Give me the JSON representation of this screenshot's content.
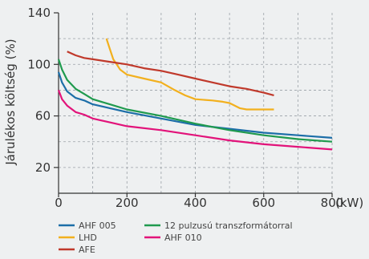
{
  "chart_data": {
    "type": "line",
    "title": "",
    "xlabel": "(kW)",
    "ylabel": "Járulékos költség (%)",
    "xlim": [
      0,
      800
    ],
    "ylim": [
      0,
      140
    ],
    "xticks": [
      0,
      200,
      400,
      600,
      800
    ],
    "yticks": [
      20,
      60,
      100,
      140
    ],
    "grid": true,
    "legend_position": "bottom-left",
    "series": [
      {
        "name": "AHF 005",
        "color": "#1c6ea8",
        "x": [
          0,
          10,
          25,
          50,
          75,
          100,
          150,
          200,
          300,
          400,
          500,
          600,
          700,
          800
        ],
        "y": [
          94,
          86,
          79,
          74,
          72,
          69,
          66,
          63,
          58,
          53,
          50,
          47,
          45,
          43
        ]
      },
      {
        "name": "12 pulzusú transzformátorral",
        "color": "#1f9a4e",
        "x": [
          0,
          10,
          25,
          50,
          75,
          100,
          150,
          200,
          300,
          400,
          500,
          600,
          700,
          800
        ],
        "y": [
          104,
          96,
          88,
          81,
          77,
          73,
          69,
          65,
          60,
          54,
          49,
          45,
          42,
          40
        ]
      },
      {
        "name": "LHD",
        "color": "#f2b01e",
        "x": [
          140,
          150,
          160,
          170,
          180,
          200,
          250,
          300,
          340,
          370,
          400,
          450,
          480,
          500,
          530,
          550,
          600,
          630
        ],
        "y": [
          120,
          112,
          104,
          100,
          96,
          92,
          89,
          86,
          80,
          76,
          73,
          72,
          71,
          70,
          66,
          65,
          65,
          65
        ]
      },
      {
        "name": "AHF 010",
        "color": "#e2137a",
        "x": [
          0,
          10,
          25,
          50,
          75,
          100,
          150,
          200,
          300,
          400,
          500,
          600,
          700,
          800
        ],
        "y": [
          80,
          73,
          68,
          63,
          61,
          58,
          55,
          52,
          49,
          45,
          41,
          38,
          36,
          34
        ]
      },
      {
        "name": "AFE",
        "color": "#c0392b",
        "x": [
          25,
          50,
          75,
          100,
          150,
          200,
          250,
          300,
          350,
          400,
          450,
          500,
          550,
          600,
          630
        ],
        "y": [
          110,
          107,
          105,
          104,
          102,
          100,
          97,
          95,
          92,
          89,
          86,
          83,
          81,
          78,
          76
        ]
      }
    ]
  }
}
